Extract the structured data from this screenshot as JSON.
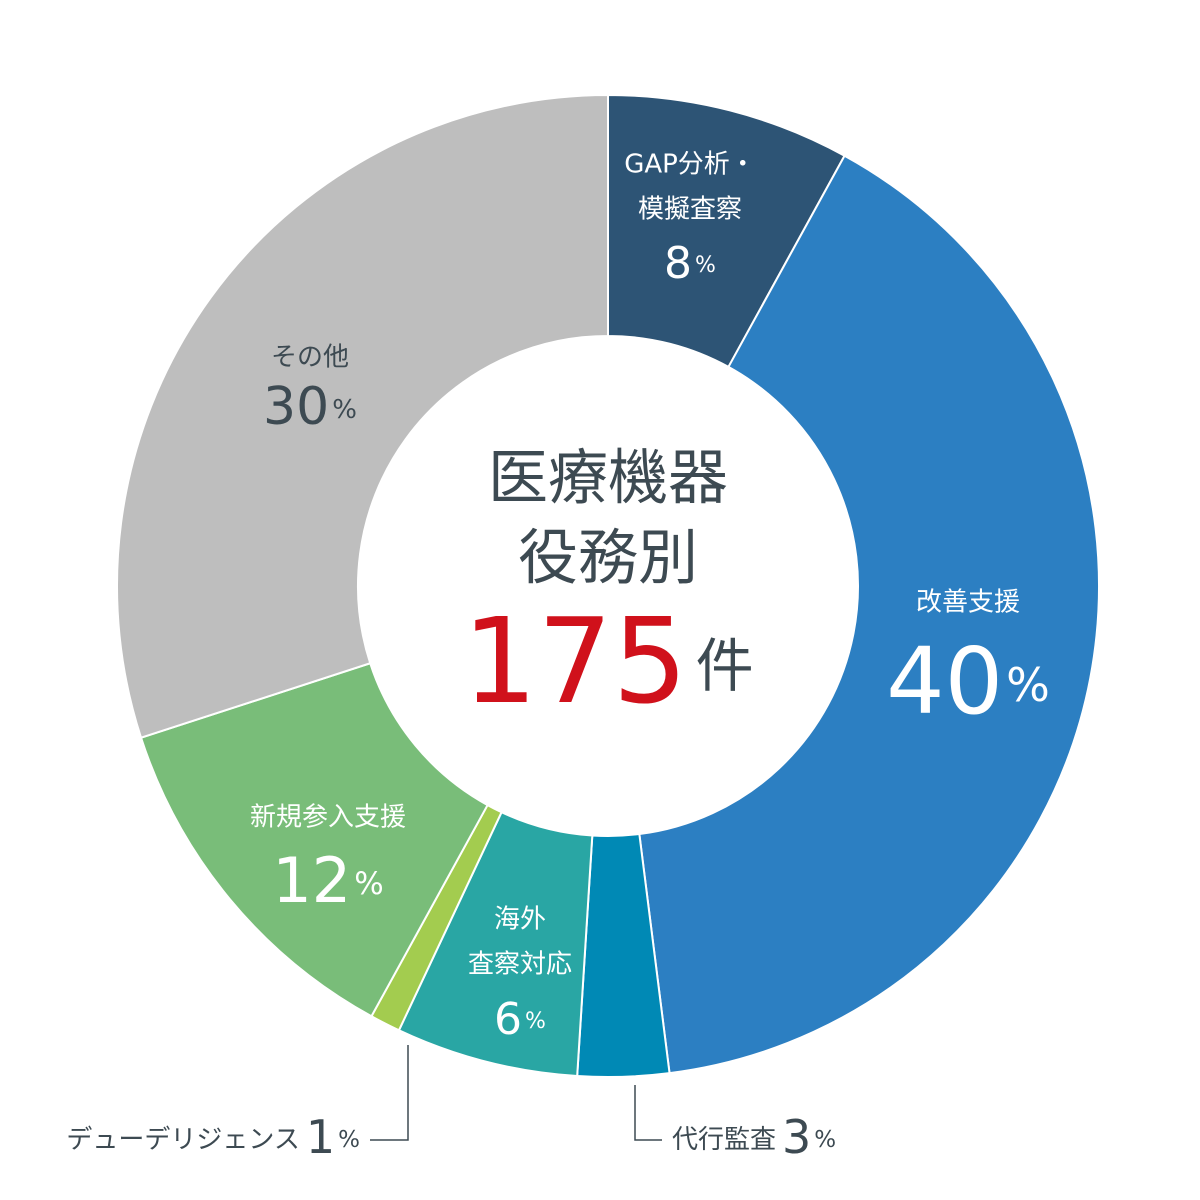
{
  "chart_data": {
    "type": "donut",
    "center_title": [
      "医療機器",
      "役務別"
    ],
    "total": 175,
    "total_unit": "件",
    "unit": "%",
    "categories": [
      [
        "GAP分析・",
        "模擬査察"
      ],
      [
        "改善支援"
      ],
      [
        "代行監査"
      ],
      [
        "海外",
        "査察対応"
      ],
      [
        "デューデリジェンス"
      ],
      [
        "新規参入支援"
      ],
      [
        "その他"
      ]
    ],
    "values": [
      8,
      40,
      3,
      6,
      1,
      12,
      30
    ],
    "colors": [
      "#2d5475",
      "#2c7fc2",
      "#0089b5",
      "#29a6a4",
      "#a3cc4f",
      "#79bd79",
      "#bebebe"
    ]
  }
}
